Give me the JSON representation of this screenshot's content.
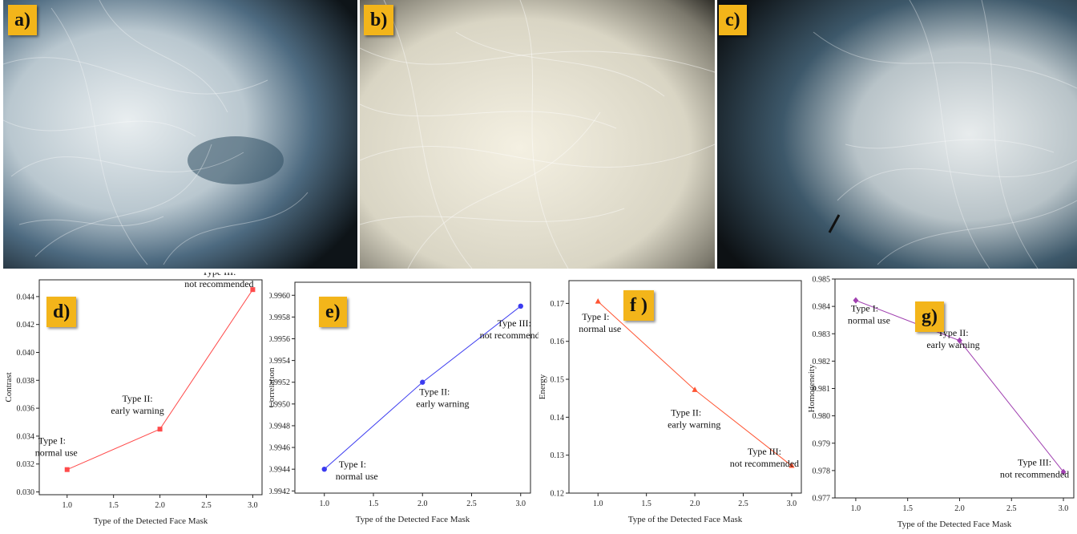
{
  "photos": [
    {
      "tag": "a)",
      "tone": "dark-blue-right"
    },
    {
      "tag": "b)",
      "tone": "light-beige"
    },
    {
      "tag": "c)",
      "tone": "dark-blue-left"
    }
  ],
  "chart_data": [
    {
      "tag": "d)",
      "type": "line",
      "xlabel": "Type of the Detected Face Mask",
      "ylabel": "Contrast",
      "x": [
        1,
        2,
        3
      ],
      "y": [
        0.0316,
        0.0345,
        0.0445
      ],
      "xlim": [
        0.7,
        3.1
      ],
      "ylim": [
        0.0298,
        0.0452
      ],
      "xticks": [
        "1.0",
        "1.5",
        "2.0",
        "2.5",
        "3.0"
      ],
      "yticks": [
        "0.030",
        "0.032",
        "0.034",
        "0.036",
        "0.038",
        "0.040",
        "0.042",
        "0.044"
      ],
      "color": "#ff4b4b",
      "marker": "square",
      "annotations": [
        {
          "line1": "Type I:",
          "line2": "normal use"
        },
        {
          "line1": "Type II:",
          "line2": "early warning"
        },
        {
          "line1": "Type III:",
          "line2": "not recommended"
        }
      ]
    },
    {
      "tag": "e)",
      "type": "line",
      "xlabel": "Type of the Detected Face Mask",
      "ylabel": "Correlation",
      "x": [
        1,
        2,
        3
      ],
      "y": [
        0.9944,
        0.9952,
        0.9959
      ],
      "xlim": [
        0.7,
        3.1
      ],
      "ylim": [
        0.99418,
        0.99612
      ],
      "xticks": [
        "1.0",
        "1.5",
        "2.0",
        "2.5",
        "3.0"
      ],
      "yticks": [
        "0.9942",
        "0.9944",
        "0.9946",
        "0.9948",
        "0.9950",
        "0.9952",
        "0.9954",
        "0.9956",
        "0.9958",
        "0.9960"
      ],
      "color": "#3b3bf0",
      "marker": "circle",
      "annotations": [
        {
          "line1": "Type I:",
          "line2": "normal use"
        },
        {
          "line1": "Type II:",
          "line2": "early warning"
        },
        {
          "line1": "Type III:",
          "line2": "not recommended"
        }
      ]
    },
    {
      "tag": "f )",
      "type": "line",
      "xlabel": "Type of the Detected Face Mask",
      "ylabel": "Energy",
      "x": [
        1,
        2,
        3
      ],
      "y": [
        0.1705,
        0.1472,
        0.1272
      ],
      "xlim": [
        0.7,
        3.1
      ],
      "ylim": [
        0.12,
        0.176
      ],
      "xticks": [
        "1.0",
        "1.5",
        "2.0",
        "2.5",
        "3.0"
      ],
      "yticks": [
        "0.12",
        "0.13",
        "0.14",
        "0.15",
        "0.16",
        "0.17"
      ],
      "color": "#ff5533",
      "marker": "triangle",
      "annotations": [
        {
          "line1": "Type I:",
          "line2": "normal use"
        },
        {
          "line1": "Type II:",
          "line2": "early warning"
        },
        {
          "line1": "Type III:",
          "line2": "not recommended"
        }
      ]
    },
    {
      "tag": "g)",
      "type": "line",
      "xlabel": "Type of the Detected Face Mask",
      "ylabel": "Homogeneity",
      "x": [
        1,
        2,
        3
      ],
      "y": [
        0.98422,
        0.98275,
        0.97795
      ],
      "xlim": [
        0.8,
        3.1
      ],
      "ylim": [
        0.977,
        0.985
      ],
      "xticks": [
        "1.0",
        "1.5",
        "2.0",
        "2.5",
        "3.0"
      ],
      "yticks": [
        "0.977",
        "0.978",
        "0.979",
        "0.980",
        "0.981",
        "0.982",
        "0.983",
        "0.984",
        "0.985"
      ],
      "color": "#a040b0",
      "marker": "diamond",
      "annotations": [
        {
          "line1": "Type I:",
          "line2": "normal use"
        },
        {
          "line1": "Type II:",
          "line2": "early warning"
        },
        {
          "line1": "Type III:",
          "line2": "not recommended"
        }
      ]
    }
  ]
}
